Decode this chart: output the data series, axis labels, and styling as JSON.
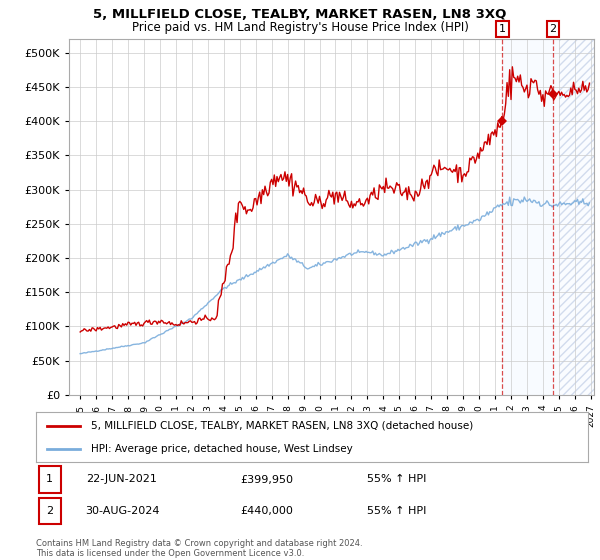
{
  "title": "5, MILLFIELD CLOSE, TEALBY, MARKET RASEN, LN8 3XQ",
  "subtitle": "Price paid vs. HM Land Registry's House Price Index (HPI)",
  "ylim": [
    0,
    520000
  ],
  "yticks": [
    0,
    50000,
    100000,
    150000,
    200000,
    250000,
    300000,
    350000,
    400000,
    450000,
    500000
  ],
  "hpi_color": "#7aaddc",
  "price_color": "#cc0000",
  "sale1_x": 2021.46,
  "sale1_y": 399950,
  "sale2_x": 2024.63,
  "sale2_y": 440000,
  "shade_start": 2021.46,
  "shade_end": 2025.0,
  "hatch_start": 2025.0,
  "hatch_end": 2027.2,
  "xlim_left": 1994.3,
  "xlim_right": 2027.2,
  "annotation1": {
    "label": "1",
    "date": "22-JUN-2021",
    "price": "£399,950",
    "pct": "55% ↑ HPI"
  },
  "annotation2": {
    "label": "2",
    "date": "30-AUG-2024",
    "price": "£440,000",
    "pct": "55% ↑ HPI"
  },
  "legend1": "5, MILLFIELD CLOSE, TEALBY, MARKET RASEN, LN8 3XQ (detached house)",
  "legend2": "HPI: Average price, detached house, West Lindsey",
  "footnote": "Contains HM Land Registry data © Crown copyright and database right 2024.\nThis data is licensed under the Open Government Licence v3.0.",
  "grid_color": "#cccccc",
  "shade_color": "#ddeeff"
}
